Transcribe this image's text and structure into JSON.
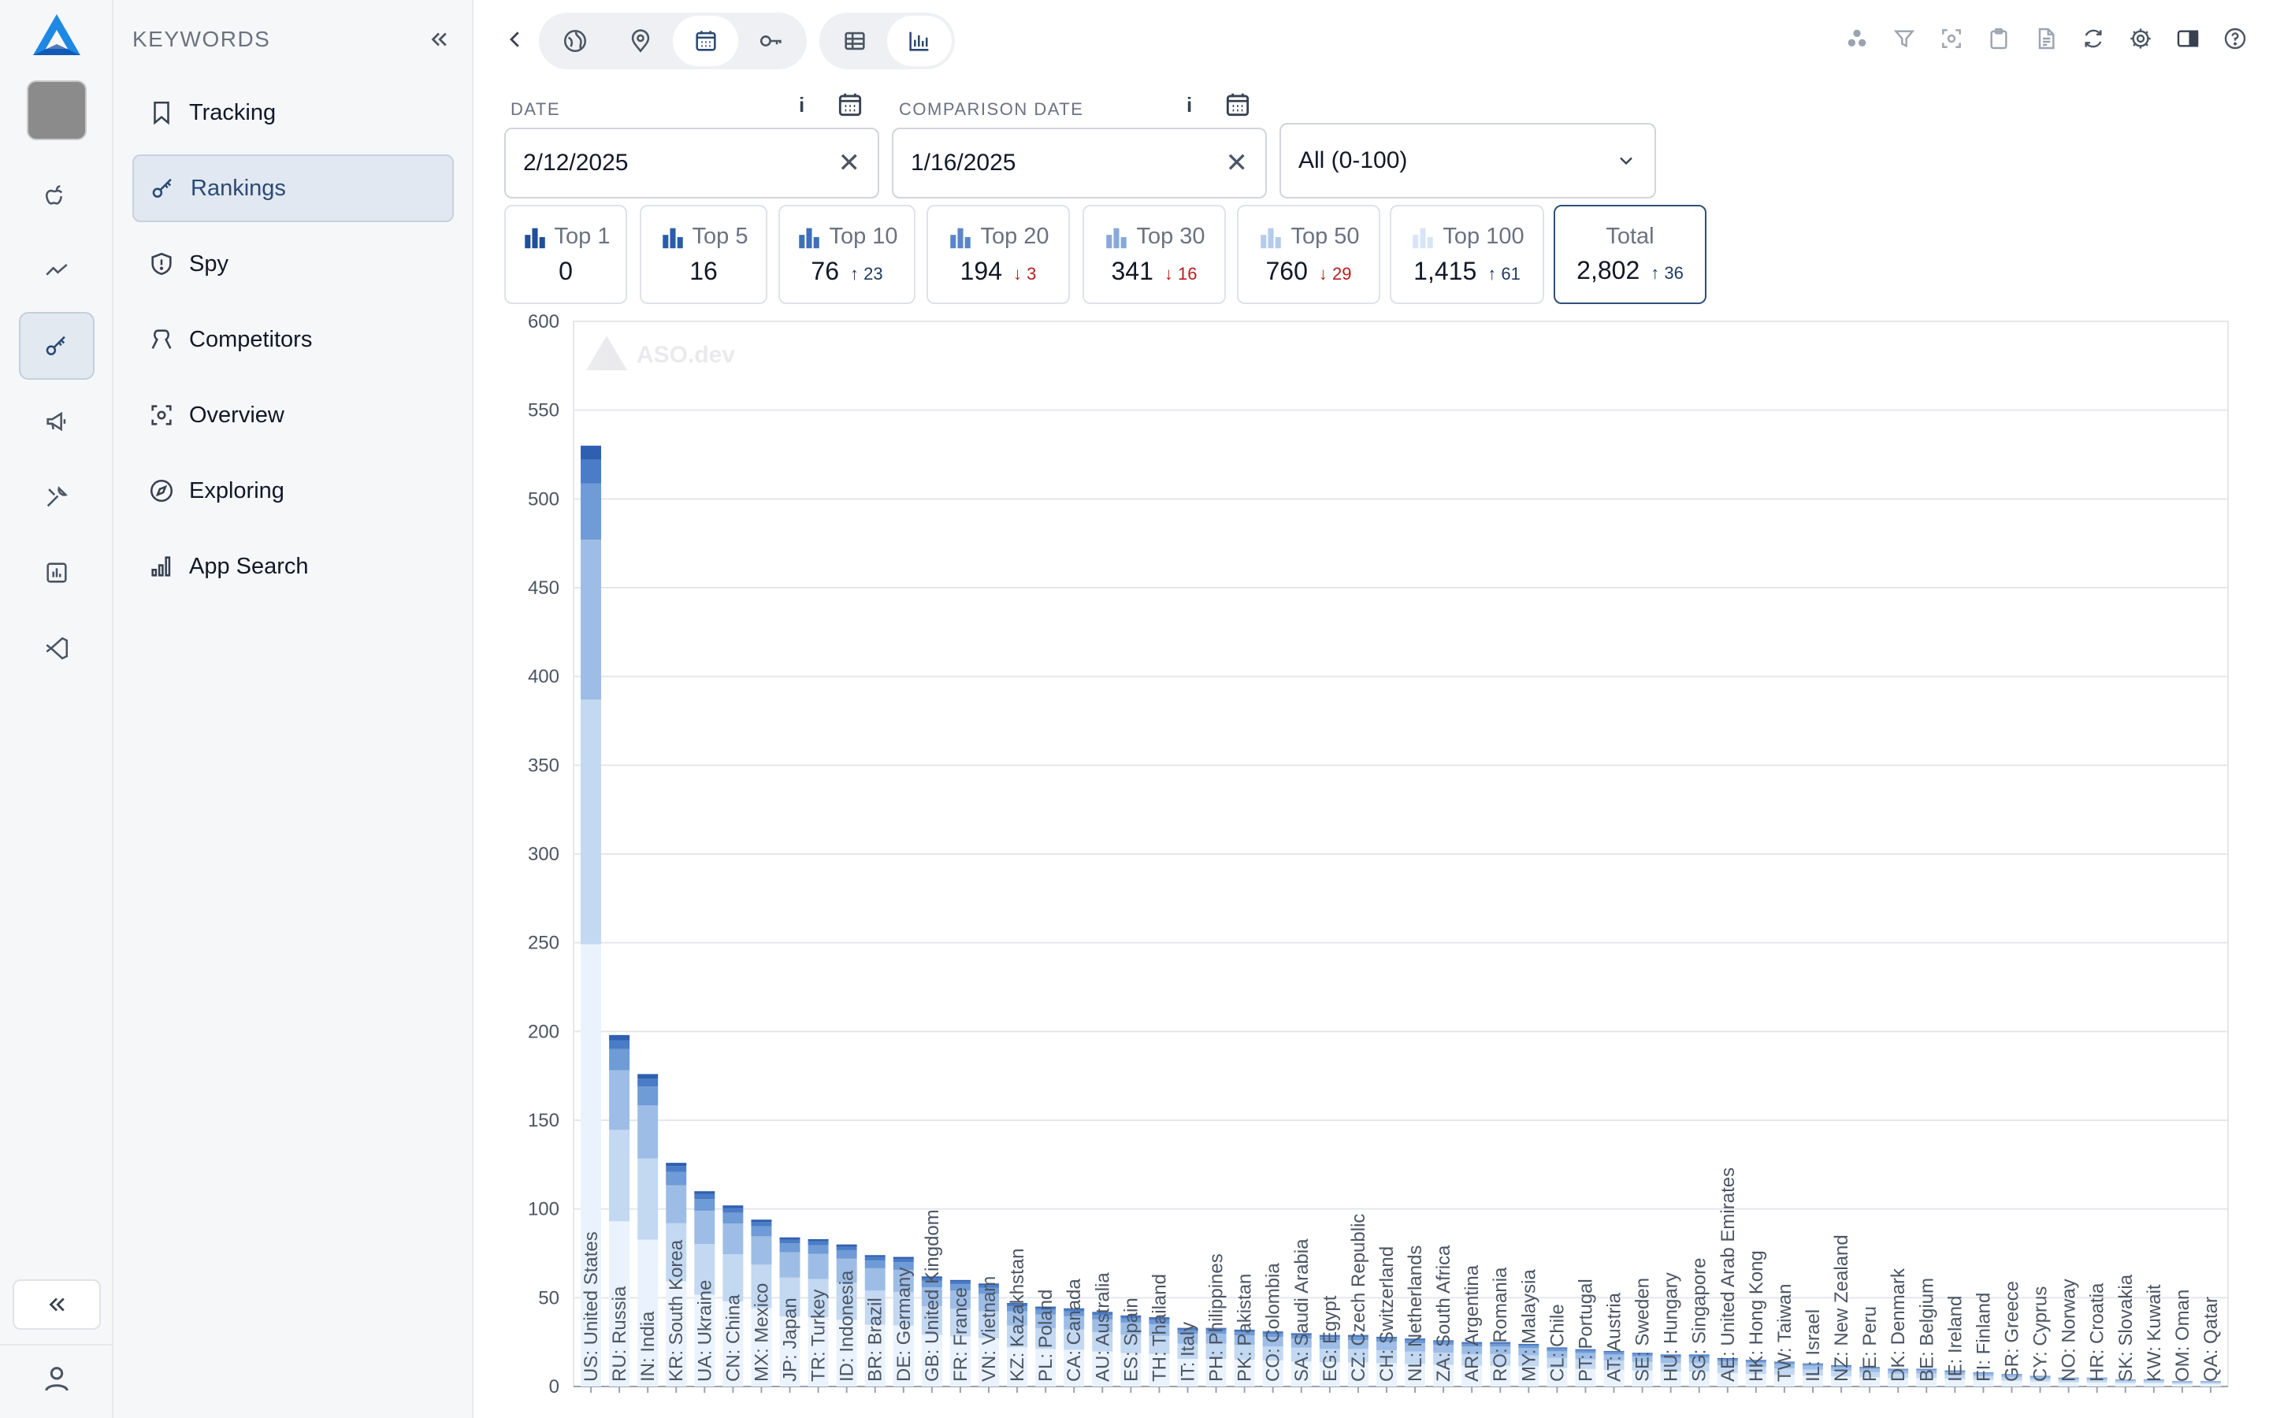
{
  "rail": {
    "items": [
      {
        "name": "logo-icon",
        "active": false
      },
      {
        "name": "app-avatar",
        "active": false
      },
      {
        "name": "apple-icon",
        "active": false
      },
      {
        "name": "trend-line-icon",
        "active": false
      },
      {
        "name": "key-icon",
        "active": true
      },
      {
        "name": "megaphone-icon",
        "active": false
      },
      {
        "name": "tools-icon",
        "active": false
      },
      {
        "name": "bar-chart-icon",
        "active": false
      },
      {
        "name": "vscode-icon",
        "active": false
      }
    ]
  },
  "panel": {
    "title": "KEYWORDS",
    "items": [
      {
        "label": "Tracking",
        "icon": "bookmark-icon",
        "active": false
      },
      {
        "label": "Rankings",
        "icon": "key-icon",
        "active": true
      },
      {
        "label": "Spy",
        "icon": "shield-icon",
        "active": false
      },
      {
        "label": "Competitors",
        "icon": "competitors-icon",
        "active": false
      },
      {
        "label": "Overview",
        "icon": "overview-icon",
        "active": false
      },
      {
        "label": "Exploring",
        "icon": "compass-icon",
        "active": false
      },
      {
        "label": "App Search",
        "icon": "search-bars-icon",
        "active": false
      }
    ]
  },
  "toolbar": {
    "scope_icons": [
      "globe-icon",
      "location-pin-icon",
      "calendar-icon",
      "key-icon"
    ],
    "active_scope": "calendar-icon",
    "view_icons": [
      "table-icon",
      "bar-chart-icon"
    ],
    "active_view": "bar-chart-icon",
    "right_icons": [
      "cluster-icon",
      "filter-icon",
      "focus-icon",
      "clipboard-icon",
      "document-icon",
      "refresh-icon",
      "gear-icon",
      "sidebar-toggle-icon",
      "help-icon"
    ]
  },
  "filters": {
    "date_label": "DATE",
    "date_value": "2/12/2025",
    "comparison_label": "COMPARISON DATE",
    "comparison_value": "1/16/2025",
    "info": "i",
    "clear": "✕",
    "range_value": "All (0-100)"
  },
  "stats": [
    {
      "label": "Top 1",
      "value": "0",
      "delta": "",
      "dir": ""
    },
    {
      "label": "Top 5",
      "value": "16",
      "delta": "",
      "dir": ""
    },
    {
      "label": "Top 10",
      "value": "76",
      "delta": "↑ 23",
      "dir": "up"
    },
    {
      "label": "Top 20",
      "value": "194",
      "delta": "↓ 3",
      "dir": "down"
    },
    {
      "label": "Top 30",
      "value": "341",
      "delta": "↓ 16",
      "dir": "down"
    },
    {
      "label": "Top 50",
      "value": "760",
      "delta": "↓ 29",
      "dir": "down"
    },
    {
      "label": "Top 100",
      "value": "1,415",
      "delta": "↑ 61",
      "dir": "up"
    },
    {
      "label": "Total",
      "value": "2,802",
      "delta": "↑ 36",
      "dir": "up"
    }
  ],
  "chart_data": {
    "type": "bar",
    "stacked": true,
    "watermark": "ASO.dev",
    "ylim": [
      0,
      600
    ],
    "yticks": [
      0,
      50,
      100,
      150,
      200,
      250,
      300,
      350,
      400,
      450,
      500,
      550,
      600
    ],
    "grid": true,
    "colors": [
      "#eaf3fd",
      "#c3d8f1",
      "#9dbde6",
      "#6f9bd6",
      "#4a7cc7",
      "#2f5fb0"
    ],
    "categories": [
      "US: United States",
      "RU: Russia",
      "IN: India",
      "KR: South Korea",
      "UA: Ukraine",
      "CN: China",
      "MX: Mexico",
      "JP: Japan",
      "TR: Turkey",
      "ID: Indonesia",
      "BR: Brazil",
      "DE: Germany",
      "GB: United Kingdom",
      "FR: France",
      "VN: Vietnam",
      "KZ: Kazakhstan",
      "PL: Poland",
      "CA: Canada",
      "AU: Australia",
      "ES: Spain",
      "TH: Thailand",
      "IT: Italy",
      "PH: Philippines",
      "PK: Pakistan",
      "CO: Colombia",
      "SA: Saudi Arabia",
      "EG: Egypt",
      "CZ: Czech Republic",
      "CH: Switzerland",
      "NL: Netherlands",
      "ZA: South Africa",
      "AR: Argentina",
      "RO: Romania",
      "MY: Malaysia",
      "CL: Chile",
      "PT: Portugal",
      "AT: Austria",
      "SE: Sweden",
      "HU: Hungary",
      "SG: Singapore",
      "AE: United Arab Emirates",
      "HK: Hong Kong",
      "TW: Taiwan",
      "IL: Israel",
      "NZ: New Zealand",
      "PE: Peru",
      "DK: Denmark",
      "BE: Belgium",
      "IE: Ireland",
      "FI: Finland",
      "GR: Greece",
      "CY: Cyprus",
      "NO: Norway",
      "HR: Croatia",
      "SK: Slovakia",
      "KW: Kuwait",
      "OM: Oman",
      "QA: Qatar"
    ],
    "totals": [
      530,
      198,
      176,
      126,
      110,
      102,
      94,
      84,
      83,
      80,
      74,
      73,
      62,
      60,
      58,
      47,
      45,
      44,
      42,
      40,
      39,
      33,
      33,
      32,
      31,
      30,
      29,
      29,
      28,
      27,
      26,
      25,
      25,
      24,
      22,
      21,
      20,
      19,
      18,
      18,
      16,
      15,
      14,
      13,
      12,
      11,
      10,
      10,
      9,
      8,
      7,
      6,
      5,
      5,
      4,
      4,
      3,
      3
    ]
  }
}
